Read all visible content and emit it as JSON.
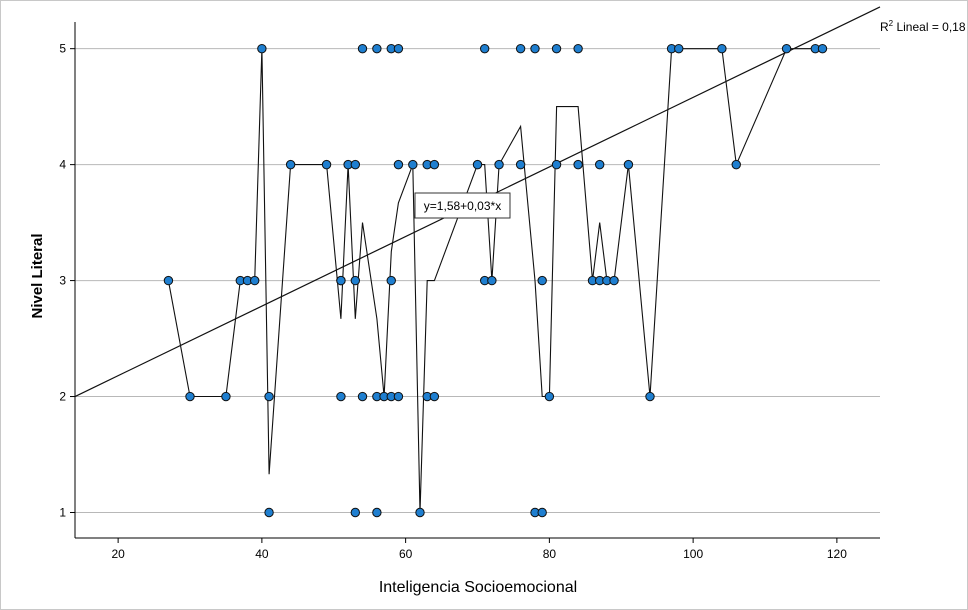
{
  "chart_data": {
    "type": "scatter",
    "xlabel": "Inteligencia Socioemocional",
    "ylabel": "Nivel Literal",
    "xlim": [
      14,
      126
    ],
    "ylim": [
      0.78,
      5.23
    ],
    "xticks": [
      20,
      40,
      60,
      80,
      100,
      120
    ],
    "yticks": [
      1,
      2,
      3,
      4,
      5
    ],
    "grid": "horizontal",
    "fit_equation": "y=1,58+0,03*x",
    "r2_prefix": "R",
    "r2_suffix": " Lineal = 0,18",
    "fit_line": {
      "intercept": 1.58,
      "slope": 0.03
    },
    "colors": {
      "point": "#1f7fd0",
      "point_edge": "#111111",
      "line": "#111111",
      "grid": "#b8b8b8"
    },
    "points": [
      [
        27,
        3
      ],
      [
        30,
        2
      ],
      [
        35,
        2
      ],
      [
        37,
        3
      ],
      [
        38,
        3
      ],
      [
        39,
        3
      ],
      [
        40,
        5
      ],
      [
        41,
        2
      ],
      [
        41,
        1
      ],
      [
        44,
        4
      ],
      [
        49,
        4
      ],
      [
        51,
        3
      ],
      [
        51,
        2
      ],
      [
        51,
        3
      ],
      [
        52,
        4
      ],
      [
        53,
        4
      ],
      [
        53,
        3
      ],
      [
        53,
        1
      ],
      [
        54,
        5
      ],
      [
        54,
        2
      ],
      [
        56,
        5
      ],
      [
        56,
        2
      ],
      [
        56,
        1
      ],
      [
        57,
        2
      ],
      [
        58,
        5
      ],
      [
        58,
        3
      ],
      [
        58,
        2
      ],
      [
        59,
        5
      ],
      [
        59,
        4
      ],
      [
        59,
        2
      ],
      [
        61,
        4
      ],
      [
        62,
        1
      ],
      [
        63,
        4
      ],
      [
        63,
        2
      ],
      [
        64,
        4
      ],
      [
        64,
        2
      ],
      [
        70,
        4
      ],
      [
        71,
        5
      ],
      [
        71,
        3
      ],
      [
        72,
        3
      ],
      [
        73,
        4
      ],
      [
        76,
        5
      ],
      [
        76,
        4
      ],
      [
        78,
        5
      ],
      [
        78,
        1
      ],
      [
        79,
        3
      ],
      [
        79,
        1
      ],
      [
        80,
        2
      ],
      [
        81,
        5
      ],
      [
        81,
        4
      ],
      [
        84,
        5
      ],
      [
        84,
        4
      ],
      [
        86,
        3
      ],
      [
        87,
        4
      ],
      [
        87,
        3
      ],
      [
        88,
        3
      ],
      [
        89,
        3
      ],
      [
        91,
        4
      ],
      [
        94,
        2
      ],
      [
        97,
        5
      ],
      [
        98,
        5
      ],
      [
        104,
        5
      ],
      [
        106,
        4
      ],
      [
        113,
        5
      ],
      [
        117,
        5
      ],
      [
        118,
        5
      ]
    ],
    "mean_line": [
      [
        27,
        3
      ],
      [
        30,
        2
      ],
      [
        35,
        2
      ],
      [
        37,
        3
      ],
      [
        38,
        3
      ],
      [
        39,
        3
      ],
      [
        40,
        5
      ],
      [
        41,
        1.33
      ],
      [
        44,
        4
      ],
      [
        49,
        4
      ],
      [
        51,
        2.67
      ],
      [
        52,
        4
      ],
      [
        53,
        2.67
      ],
      [
        54,
        3.5
      ],
      [
        56,
        2.67
      ],
      [
        57,
        2
      ],
      [
        58,
        3.25
      ],
      [
        59,
        3.67
      ],
      [
        61,
        4
      ],
      [
        62,
        1
      ],
      [
        63,
        3
      ],
      [
        64,
        3
      ],
      [
        70,
        4
      ],
      [
        71,
        4
      ],
      [
        72,
        3
      ],
      [
        73,
        4
      ],
      [
        76,
        4.33
      ],
      [
        78,
        3
      ],
      [
        79,
        2
      ],
      [
        80,
        2
      ],
      [
        81,
        4.5
      ],
      [
        84,
        4.5
      ],
      [
        86,
        3
      ],
      [
        87,
        3.5
      ],
      [
        88,
        3
      ],
      [
        89,
        3
      ],
      [
        91,
        4
      ],
      [
        94,
        2
      ],
      [
        97,
        5
      ],
      [
        98,
        5
      ],
      [
        104,
        5
      ],
      [
        106,
        4
      ],
      [
        113,
        5
      ],
      [
        117,
        5
      ],
      [
        118,
        5
      ]
    ]
  }
}
